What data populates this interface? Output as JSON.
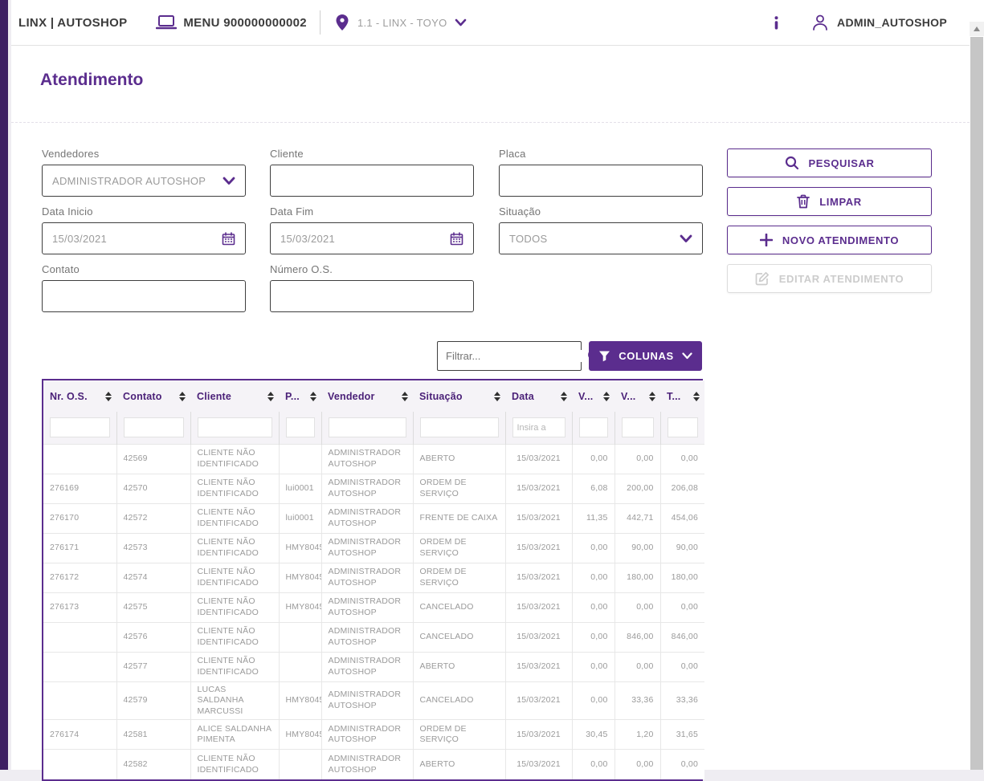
{
  "colors": {
    "primary": "#5b2d8e",
    "sidebar_strip": "#3e2063",
    "header_text": "#3c3c3c",
    "muted_text": "#9a9a9a"
  },
  "header": {
    "brand": "LINX | AUTOSHOP",
    "menu_label": "MENU 900000000002",
    "store_label": "1.1 - LINX - TOYO",
    "user_label": "ADMIN_AUTOSHOP"
  },
  "page": {
    "title": "Atendimento"
  },
  "filters": {
    "vendedores": {
      "label": "Vendedores",
      "value": "ADMINISTRADOR AUTOSHOP"
    },
    "cliente": {
      "label": "Cliente",
      "value": ""
    },
    "placa": {
      "label": "Placa",
      "value": ""
    },
    "data_inicio": {
      "label": "Data Inicio",
      "value": "15/03/2021"
    },
    "data_fim": {
      "label": "Data Fim",
      "value": "15/03/2021"
    },
    "situacao": {
      "label": "Situação",
      "value": "TODOS"
    },
    "contato": {
      "label": "Contato",
      "value": ""
    },
    "numero_os": {
      "label": "Número O.S.",
      "value": ""
    }
  },
  "actions": {
    "pesquisar": "PESQUISAR",
    "limpar": "LIMPAR",
    "novo_atendimento": "NOVO ATENDIMENTO",
    "editar_atendimento": "EDITAR ATENDIMENTO"
  },
  "table_toolbar": {
    "filter_placeholder": "Filtrar...",
    "colunas_label": "COLUNAS"
  },
  "table": {
    "columns": [
      "Nr. O.S.",
      "Contato",
      "Cliente",
      "P...",
      "Vendedor",
      "Situação",
      "Data",
      "V...",
      "V...",
      "T..."
    ],
    "filter_row": {
      "data_placeholder": "Insira a"
    },
    "rows": [
      [
        "",
        "42569",
        "CLIENTE NÃO IDENTIFICADO",
        "",
        "ADMINISTRADOR AUTOSHOP",
        "ABERTO",
        "15/03/2021",
        "0,00",
        "0,00",
        "0,00"
      ],
      [
        "276169",
        "42570",
        "CLIENTE NÃO IDENTIFICADO",
        "lui0001",
        "ADMINISTRADOR AUTOSHOP",
        "ORDEM DE SERVIÇO",
        "15/03/2021",
        "6,08",
        "200,00",
        "206,08"
      ],
      [
        "276170",
        "42572",
        "CLIENTE NÃO IDENTIFICADO",
        "lui0001",
        "ADMINISTRADOR AUTOSHOP",
        "FRENTE DE CAIXA",
        "15/03/2021",
        "11,35",
        "442,71",
        "454,06"
      ],
      [
        "276171",
        "42573",
        "CLIENTE NÃO IDENTIFICADO",
        "HMY8045",
        "ADMINISTRADOR AUTOSHOP",
        "ORDEM DE SERVIÇO",
        "15/03/2021",
        "0,00",
        "90,00",
        "90,00"
      ],
      [
        "276172",
        "42574",
        "CLIENTE NÃO IDENTIFICADO",
        "HMY8045",
        "ADMINISTRADOR AUTOSHOP",
        "ORDEM DE SERVIÇO",
        "15/03/2021",
        "0,00",
        "180,00",
        "180,00"
      ],
      [
        "276173",
        "42575",
        "CLIENTE NÃO IDENTIFICADO",
        "HMY8045",
        "ADMINISTRADOR AUTOSHOP",
        "CANCELADO",
        "15/03/2021",
        "0,00",
        "0,00",
        "0,00"
      ],
      [
        "",
        "42576",
        "CLIENTE NÃO IDENTIFICADO",
        "",
        "ADMINISTRADOR AUTOSHOP",
        "CANCELADO",
        "15/03/2021",
        "0,00",
        "846,00",
        "846,00"
      ],
      [
        "",
        "42577",
        "CLIENTE NÃO IDENTIFICADO",
        "",
        "ADMINISTRADOR AUTOSHOP",
        "ABERTO",
        "15/03/2021",
        "0,00",
        "0,00",
        "0,00"
      ],
      [
        "",
        "42579",
        "LUCAS SALDANHA MARCUSSI",
        "HMY8045",
        "ADMINISTRADOR AUTOSHOP",
        "CANCELADO",
        "15/03/2021",
        "0,00",
        "33,36",
        "33,36"
      ],
      [
        "276174",
        "42581",
        "ALICE SALDANHA PIMENTA",
        "HMY8045",
        "ADMINISTRADOR AUTOSHOP",
        "ORDEM DE SERVIÇO",
        "15/03/2021",
        "30,45",
        "1,20",
        "31,65"
      ],
      [
        "",
        "42582",
        "CLIENTE NÃO IDENTIFICADO",
        "",
        "ADMINISTRADOR AUTOSHOP",
        "ABERTO",
        "15/03/2021",
        "0,00",
        "0,00",
        "0,00"
      ]
    ]
  }
}
